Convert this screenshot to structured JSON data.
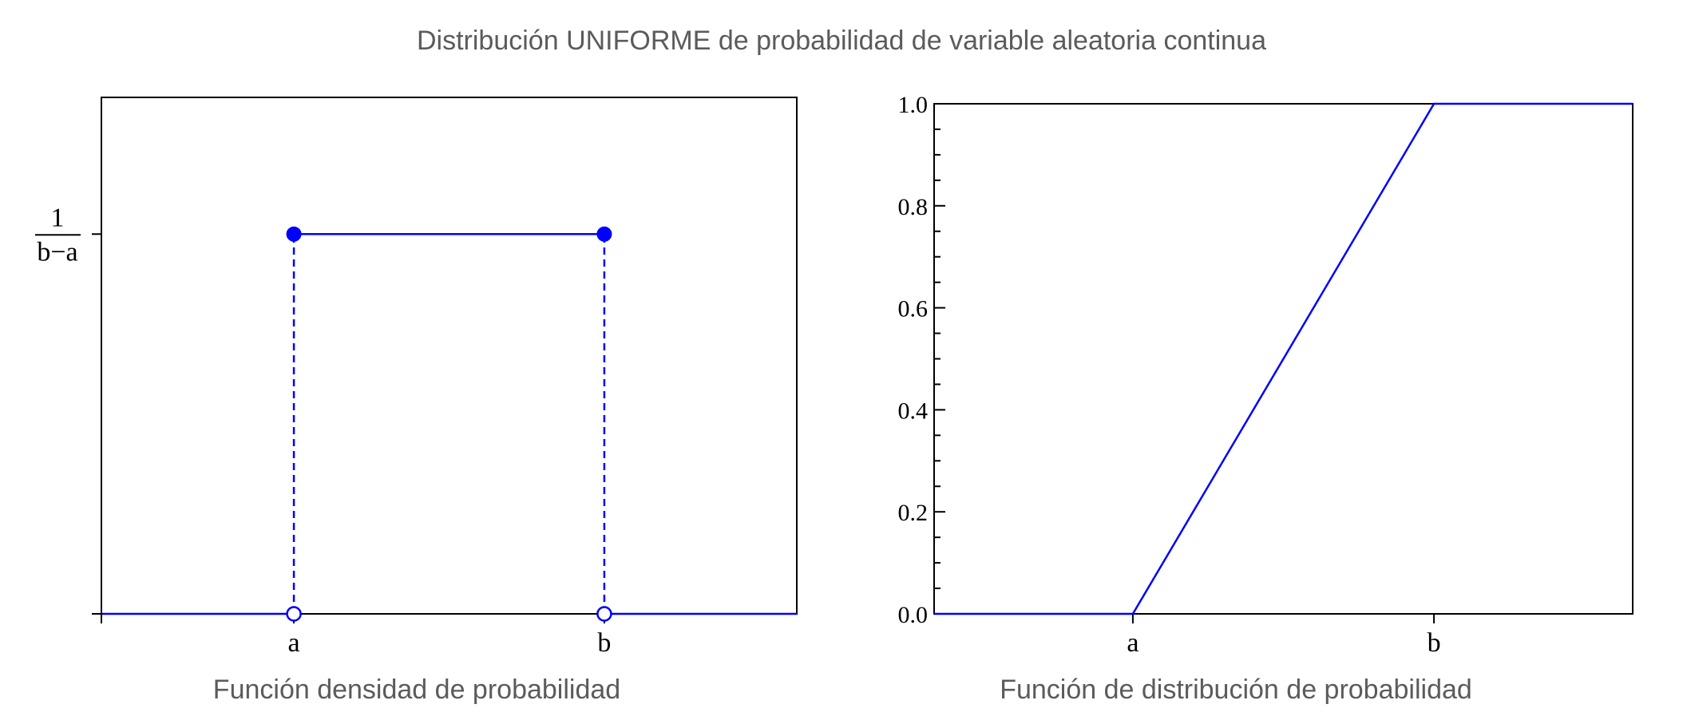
{
  "title": "Distribución UNIFORME de probabilidad de variable aleatoria continua",
  "colors": {
    "series": "#0000ff",
    "axes": "#000000",
    "title": "#5b5b5b",
    "caption": "#5b5b5b"
  },
  "chart_data": [
    {
      "type": "line",
      "caption": "Función densidad de probabilidad",
      "x_ticks": [
        {
          "label": "a",
          "value": 0
        },
        {
          "label": "b",
          "value": 1
        }
      ],
      "xlim": [
        -0.62,
        1.62
      ],
      "ylim": [
        0,
        1.36
      ],
      "y_tick": {
        "numerator": "1",
        "denominator": "b−a",
        "value": 1
      },
      "series": [
        {
          "segments": [
            [
              [
                -0.62,
                0
              ],
              [
                0,
                0
              ]
            ],
            [
              [
                0,
                1
              ],
              [
                1,
                1
              ]
            ],
            [
              [
                1,
                0
              ],
              [
                1.62,
                0
              ]
            ]
          ]
        }
      ],
      "dashed_segments": [
        [
          [
            0,
            0
          ],
          [
            0,
            1
          ]
        ],
        [
          [
            1,
            0
          ],
          [
            1,
            1
          ]
        ]
      ],
      "filled_points": [
        [
          0,
          1
        ],
        [
          1,
          1
        ]
      ],
      "open_points": [
        [
          0,
          0
        ],
        [
          1,
          0
        ]
      ],
      "grid": false
    },
    {
      "type": "line",
      "caption": "Función de distribución de probabilidad",
      "x_ticks": [
        {
          "label": "a",
          "value": 0
        },
        {
          "label": "b",
          "value": 1
        }
      ],
      "xlim": [
        -0.66,
        1.66
      ],
      "ylim": [
        0,
        1.0
      ],
      "y_ticks": [
        "0.0",
        "0.2",
        "0.4",
        "0.6",
        "0.8",
        "1.0"
      ],
      "series": [
        {
          "x": [
            -0.66,
            0,
            1,
            1.66
          ],
          "y": [
            0,
            0,
            1,
            1
          ]
        }
      ],
      "grid": false
    }
  ]
}
